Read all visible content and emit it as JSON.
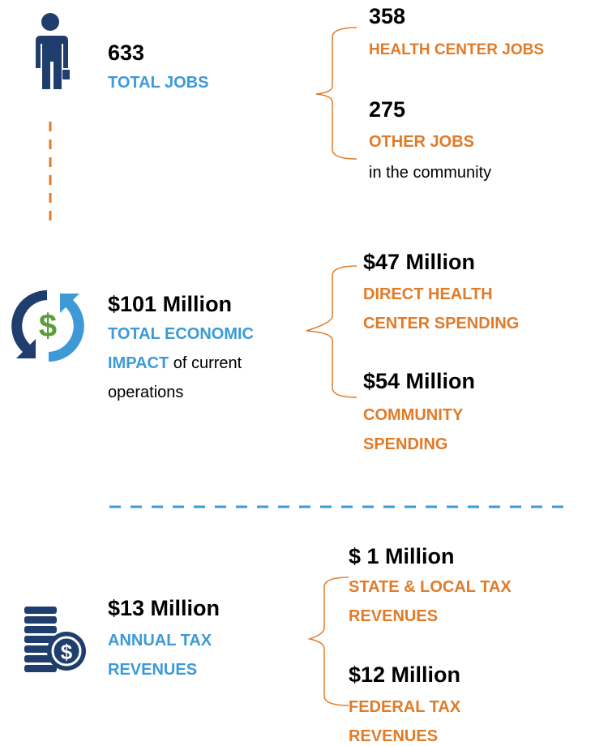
{
  "jobs": {
    "total": {
      "value": "633",
      "label": "TOTAL JOBS"
    },
    "parts": [
      {
        "value": "358",
        "label": "HEALTH CENTER JOBS"
      },
      {
        "value": "275",
        "label": "OTHER JOBS",
        "note": "in the community"
      }
    ]
  },
  "impact": {
    "total": {
      "value": "$101 Million",
      "label": "TOTAL ECONOMIC IMPACT",
      "note": "of current operations"
    },
    "parts": [
      {
        "value": "$47 Million",
        "label": "DIRECT HEALTH CENTER SPENDING"
      },
      {
        "value": "$54 Million",
        "label": "COMMUNITY SPENDING"
      }
    ]
  },
  "tax": {
    "total": {
      "value": "$13 Million",
      "label": "ANNUAL TAX REVENUES"
    },
    "parts": [
      {
        "value": "$ 1 Million",
        "label": "STATE & LOCAL TAX REVENUES"
      },
      {
        "value": "$12 Million",
        "label": "FEDERAL TAX REVENUES"
      }
    ]
  }
}
